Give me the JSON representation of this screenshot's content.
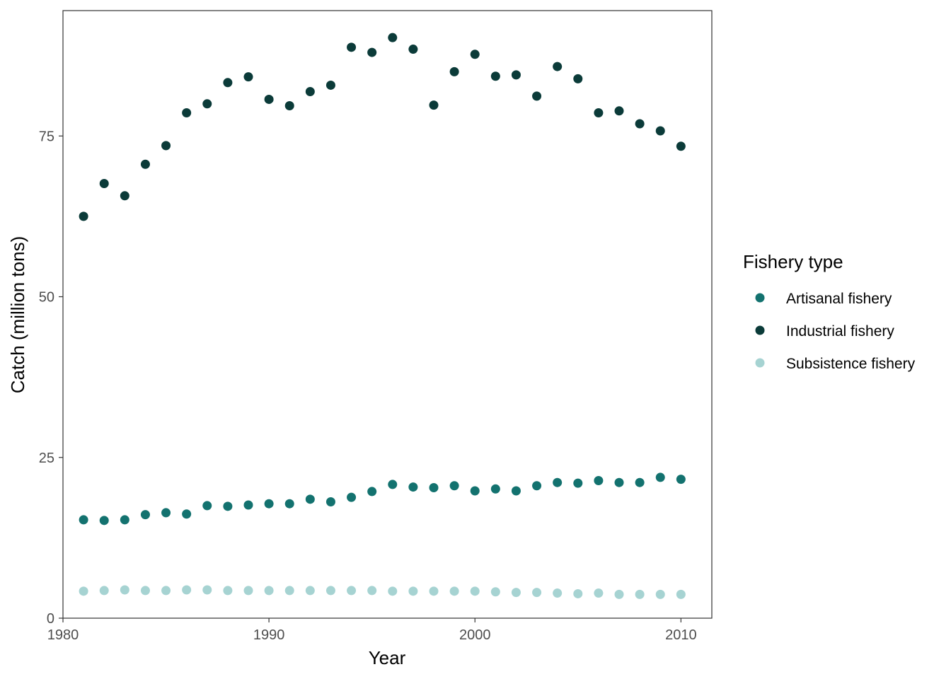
{
  "chart_data": {
    "type": "scatter",
    "title": "",
    "xlabel": "Year",
    "ylabel": "Catch (million tons)",
    "xlim": [
      1980,
      2011.5
    ],
    "ylim": [
      0,
      94.5
    ],
    "x_ticks": [
      1980,
      1990,
      2000,
      2010
    ],
    "y_ticks": [
      0,
      25,
      50,
      75
    ],
    "grid": false,
    "legend": {
      "title": "Fishery type",
      "placement": "right"
    },
    "x": [
      1981,
      1982,
      1983,
      1984,
      1985,
      1986,
      1987,
      1988,
      1989,
      1990,
      1991,
      1992,
      1993,
      1994,
      1995,
      1996,
      1997,
      1998,
      1999,
      2000,
      2001,
      2002,
      2003,
      2004,
      2005,
      2006,
      2007,
      2008,
      2009,
      2010
    ],
    "series": [
      {
        "name": "Artisanal fishery",
        "color": "#13726f",
        "values": [
          15.3,
          15.2,
          15.3,
          16.1,
          16.4,
          16.2,
          17.5,
          17.4,
          17.6,
          17.8,
          17.8,
          18.5,
          18.1,
          18.8,
          19.7,
          20.8,
          20.4,
          20.3,
          20.6,
          19.8,
          20.1,
          19.8,
          20.6,
          21.1,
          21.0,
          21.4,
          21.1,
          21.1,
          21.9,
          21.6
        ]
      },
      {
        "name": "Industrial fishery",
        "color": "#0b3b39",
        "values": [
          62.5,
          67.6,
          65.7,
          70.6,
          73.5,
          78.6,
          80.0,
          83.3,
          84.2,
          80.7,
          79.7,
          81.9,
          82.9,
          88.8,
          88.0,
          90.3,
          88.5,
          79.8,
          85.0,
          87.7,
          84.3,
          84.5,
          81.2,
          85.8,
          83.9,
          78.6,
          78.9,
          76.9,
          75.8,
          73.4
        ]
      },
      {
        "name": "Subsistence fishery",
        "color": "#a6d3d2",
        "values": [
          4.2,
          4.3,
          4.4,
          4.3,
          4.3,
          4.4,
          4.4,
          4.3,
          4.3,
          4.3,
          4.3,
          4.3,
          4.3,
          4.3,
          4.3,
          4.2,
          4.2,
          4.2,
          4.2,
          4.2,
          4.1,
          4.0,
          4.0,
          3.9,
          3.8,
          3.9,
          3.7,
          3.7,
          3.7,
          3.7
        ]
      }
    ]
  }
}
